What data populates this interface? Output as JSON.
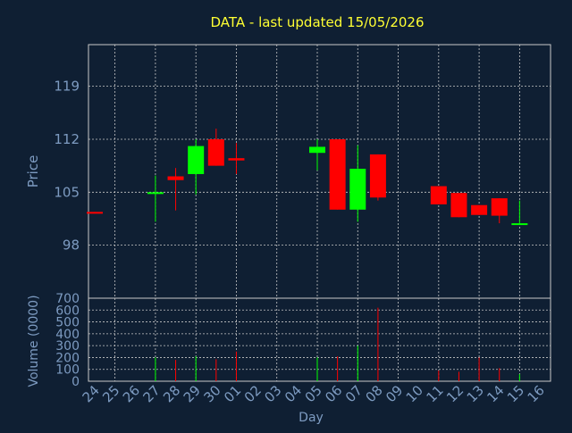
{
  "chart_data": {
    "type": "candlestick",
    "title": "DATA - last updated 15/05/2026",
    "xlabel": "Day",
    "price_ylabel": "Price",
    "volume_ylabel": "Volume (0000)",
    "price_yticks": [
      98,
      105,
      112,
      119
    ],
    "price_ylim": [
      91,
      124.5
    ],
    "volume_yticks": [
      0,
      100,
      200,
      300,
      400,
      500,
      600,
      700
    ],
    "volume_ylim": [
      0,
      700
    ],
    "x_tick_labels": [
      "24",
      "25",
      "26",
      "27",
      "28",
      "29",
      "30",
      "01",
      "02",
      "03",
      "04",
      "05",
      "06",
      "07",
      "08",
      "09",
      "10",
      "11",
      "12",
      "13",
      "14",
      "15",
      "16"
    ],
    "grid": true,
    "colors": {
      "up": "#00ff00",
      "down": "#ff0000",
      "background": "#0f1f33",
      "title": "#ffff33",
      "axis_text": "#7d9bc1",
      "grid": "#c8c8c8"
    },
    "candles": [
      {
        "day": "24",
        "open": 102.4,
        "close": 102.2,
        "high": 102.4,
        "low": 102.2,
        "volume": 0
      },
      {
        "day": "27",
        "open": 104.9,
        "close": 105.0,
        "high": 107.2,
        "low": 101.1,
        "volume": 200
      },
      {
        "day": "28",
        "open": 107.1,
        "close": 106.6,
        "high": 108.2,
        "low": 102.6,
        "volume": 180
      },
      {
        "day": "29",
        "open": 107.4,
        "close": 111.1,
        "high": 112.0,
        "low": 104.7,
        "volume": 210
      },
      {
        "day": "30",
        "open": 112.0,
        "close": 108.5,
        "high": 113.4,
        "low": 108.5,
        "volume": 185
      },
      {
        "day": "01",
        "open": 109.5,
        "close": 109.2,
        "high": 111.5,
        "low": 107.4,
        "volume": 250
      },
      {
        "day": "05",
        "open": 110.2,
        "close": 111.0,
        "high": 112.0,
        "low": 107.9,
        "volume": 200
      },
      {
        "day": "06",
        "open": 112.0,
        "close": 102.7,
        "high": 112.0,
        "low": 102.7,
        "volume": 210
      },
      {
        "day": "07",
        "open": 102.7,
        "close": 108.1,
        "high": 111.2,
        "low": 101.1,
        "volume": 300
      },
      {
        "day": "08",
        "open": 110.0,
        "close": 104.3,
        "high": 110.0,
        "low": 103.9,
        "volume": 620
      },
      {
        "day": "11",
        "open": 105.8,
        "close": 103.4,
        "high": 105.8,
        "low": 103.4,
        "volume": 90
      },
      {
        "day": "12",
        "open": 104.9,
        "close": 101.7,
        "high": 104.9,
        "low": 101.7,
        "volume": 80
      },
      {
        "day": "13",
        "open": 103.3,
        "close": 102.0,
        "high": 103.3,
        "low": 102.0,
        "volume": 200
      },
      {
        "day": "14",
        "open": 104.2,
        "close": 101.9,
        "high": 104.2,
        "low": 100.9,
        "volume": 110
      },
      {
        "day": "15",
        "open": 100.9,
        "close": 100.9,
        "high": 103.9,
        "low": 100.9,
        "volume": 60
      }
    ]
  }
}
